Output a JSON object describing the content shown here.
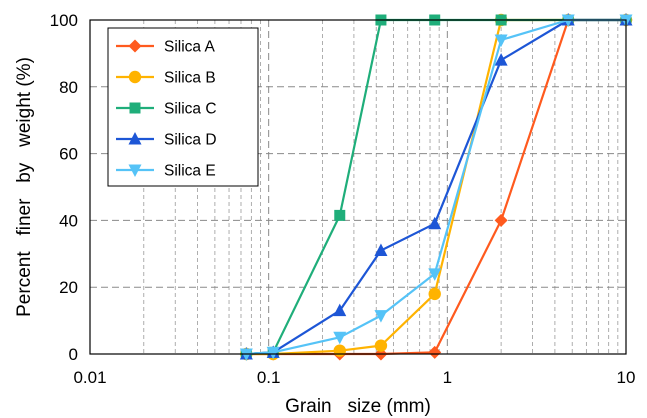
{
  "chart_data": {
    "type": "line",
    "title": "",
    "xlabel": "Grain   size (mm)",
    "ylabel": "Percent   finer   by   weight (%)",
    "xscale": "log",
    "xlim": [
      0.01,
      10
    ],
    "ylim": [
      0,
      100
    ],
    "xticks": [
      0.01,
      0.1,
      1,
      10
    ],
    "xtick_labels": [
      "0.01",
      "0.1",
      "1",
      "10"
    ],
    "yticks": [
      0,
      20,
      40,
      60,
      80,
      100
    ],
    "ytick_labels": [
      "0",
      "20",
      "40",
      "60",
      "80",
      "100"
    ],
    "grid": true,
    "legend_position": "top-left",
    "x": [
      0.075,
      0.106,
      0.25,
      0.425,
      0.85,
      2.0,
      4.75,
      10.0
    ],
    "series": [
      {
        "name": "Silica A",
        "color": "#ff5a1e",
        "marker": "diamond",
        "values": [
          0,
          0,
          0,
          0,
          0.5,
          40,
          100,
          100
        ]
      },
      {
        "name": "Silica B",
        "color": "#ffb300",
        "marker": "circle",
        "values": [
          0,
          0,
          1,
          2.5,
          18,
          100,
          100,
          100
        ]
      },
      {
        "name": "Silica C",
        "color": "#1fae7a",
        "marker": "square",
        "values": [
          0,
          0.5,
          41.5,
          100,
          100,
          100,
          100,
          100
        ]
      },
      {
        "name": "Silica D",
        "color": "#1d56d6",
        "marker": "triangle-up",
        "values": [
          0,
          0.5,
          13,
          31,
          39,
          88,
          100,
          100
        ]
      },
      {
        "name": "Silica E",
        "color": "#55c3f7",
        "marker": "triangle-down",
        "values": [
          0,
          0.5,
          5,
          11.5,
          24,
          94,
          100,
          100
        ]
      }
    ]
  }
}
